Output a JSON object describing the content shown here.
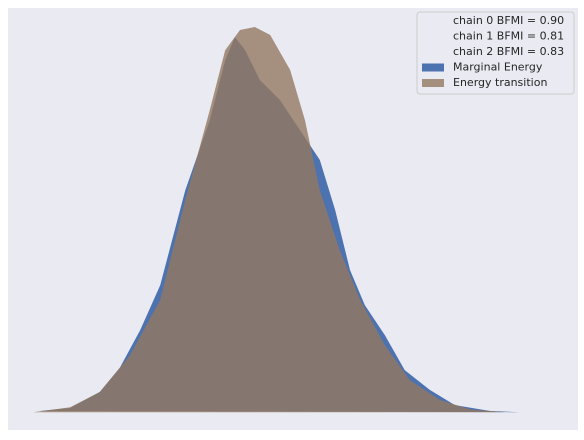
{
  "chart_data": {
    "type": "area",
    "annotations": [
      "chain  0 BFMI = 0.90",
      "chain  1 BFMI = 0.81",
      "chain  2 BFMI = 0.83"
    ],
    "xlim": [
      0,
      100
    ],
    "ylim": [
      -4,
      96
    ],
    "legend": "upper right",
    "series": [
      {
        "name": "Marginal Energy",
        "color": "#4c72b0",
        "opacity": 1,
        "x": [
          5.6,
          10.9,
          16.1,
          19.6,
          23.2,
          26.7,
          31.1,
          35.4,
          38.1,
          39.8,
          41.6,
          44.2,
          47.7,
          51.2,
          54.7,
          57.4,
          60.0,
          62.6,
          66.1,
          69.6,
          74.0,
          78.4,
          84.6,
          89.8,
          95.1
        ],
        "values": [
          0.5,
          1.2,
          5.0,
          10.7,
          19.7,
          30.3,
          52.8,
          69.4,
          83.6,
          89.1,
          86.0,
          78.9,
          74.2,
          67.1,
          60.0,
          48.1,
          33.9,
          25.6,
          18.5,
          10.2,
          5.5,
          1.9,
          0.5,
          0.2,
          0.2
        ]
      },
      {
        "name": "Energy transition",
        "color": "#937860",
        "opacity": 0.8,
        "x": [
          4.4,
          10.9,
          16.1,
          21.4,
          26.7,
          31.1,
          35.4,
          38.1,
          40.7,
          43.3,
          46.0,
          49.5,
          52.1,
          54.7,
          58.2,
          61.8,
          66.1,
          70.5,
          75.8,
          81.1,
          87.2
        ],
        "values": [
          0.2,
          1.4,
          5.0,
          13.7,
          26.8,
          50.5,
          71.8,
          86.0,
          90.8,
          91.5,
          89.6,
          81.3,
          69.4,
          52.8,
          38.6,
          26.8,
          16.1,
          7.8,
          3.1,
          0.9,
          0.2
        ]
      }
    ]
  }
}
